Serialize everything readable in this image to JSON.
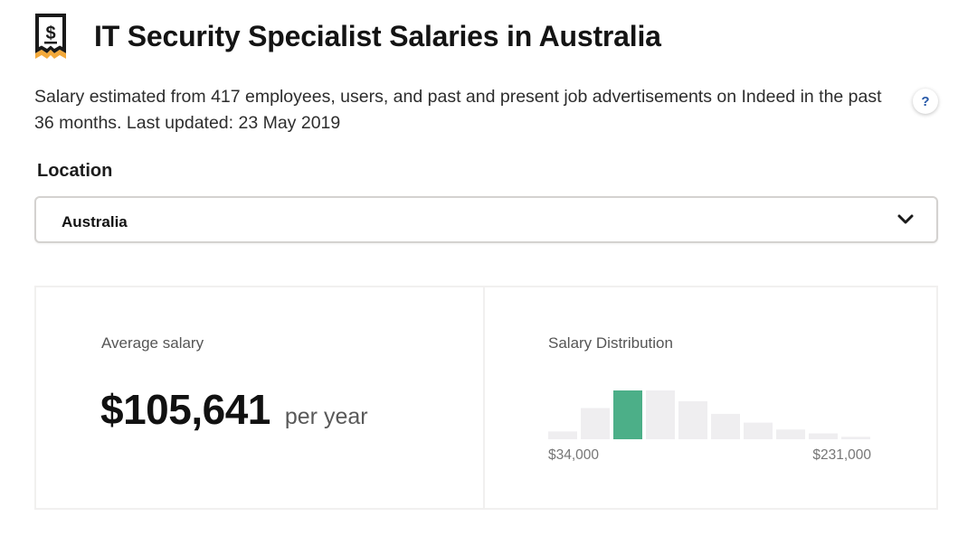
{
  "header": {
    "title": "IT Security Specialist Salaries in Australia",
    "icon": "salary-dollar-icon"
  },
  "description": "Salary estimated from 417 employees, users, and past and present job advertisements on Indeed in the past 36 months. Last updated: 23 May 2019",
  "help": {
    "label": "?"
  },
  "location": {
    "label": "Location",
    "selected": "Australia"
  },
  "average": {
    "label": "Average salary",
    "value": "$105,641",
    "unit": "per year"
  },
  "distribution": {
    "label": "Salary Distribution",
    "min_label": "$34,000",
    "max_label": "$231,000"
  },
  "chart_data": {
    "type": "bar",
    "x_range": [
      "$34,000",
      "$231,000"
    ],
    "values": [
      0.16,
      0.64,
      1.0,
      1.0,
      0.78,
      0.52,
      0.34,
      0.2,
      0.12,
      0.05
    ],
    "highlight_index": 2,
    "colors": {
      "bar": "#efeef0",
      "highlight": "#4caf88"
    }
  }
}
